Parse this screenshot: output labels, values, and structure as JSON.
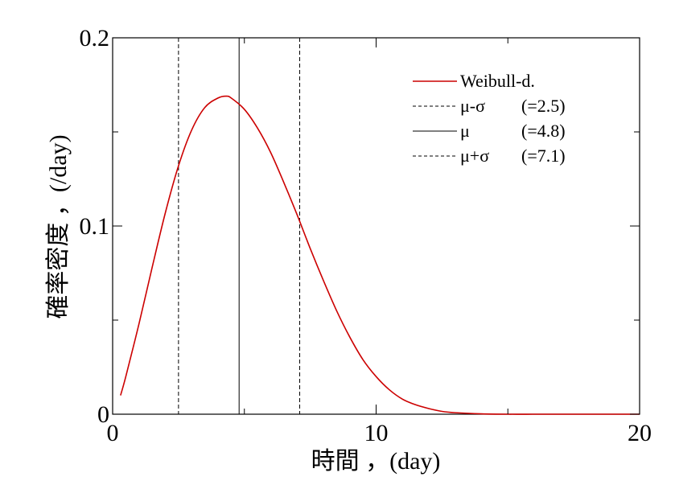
{
  "chart_data": {
    "type": "line",
    "title": "",
    "xlabel": "時間 ，(day)",
    "ylabel": "確率密度 ，(/day)",
    "xlim": [
      0,
      20
    ],
    "ylim": [
      0,
      0.2
    ],
    "x_ticks": [
      {
        "value": 0,
        "label": "0"
      },
      {
        "value": 10,
        "label": "10"
      },
      {
        "value": 20,
        "label": "20"
      }
    ],
    "y_ticks": [
      {
        "value": 0,
        "label": "0"
      },
      {
        "value": 0.1,
        "label": "0.1"
      },
      {
        "value": 0.2,
        "label": "0.2"
      }
    ],
    "x_minor_step": 5,
    "y_minor_step": 0.05,
    "grid": false,
    "legend_position": "top-right",
    "series": [
      {
        "name": "Weibull-d.",
        "color": "#cc0000",
        "style": "solid",
        "x": [
          0.3,
          0.5,
          1.0,
          1.5,
          2.0,
          2.5,
          3.0,
          3.5,
          4.0,
          4.3,
          4.5,
          5.0,
          5.5,
          6.0,
          6.5,
          7.0,
          7.5,
          8.0,
          8.5,
          9.0,
          9.5,
          10.0,
          10.5,
          11.0,
          11.5,
          12.0,
          12.5,
          13.0,
          14.0,
          15.0,
          16.0,
          17.0,
          18.0,
          19.0,
          20.0
        ],
        "y": [
          0.01,
          0.02,
          0.048,
          0.078,
          0.107,
          0.132,
          0.151,
          0.163,
          0.168,
          0.169,
          0.168,
          0.162,
          0.152,
          0.139,
          0.123,
          0.106,
          0.088,
          0.071,
          0.055,
          0.041,
          0.029,
          0.02,
          0.013,
          0.008,
          0.005,
          0.003,
          0.0015,
          0.0008,
          0.0002,
          0.0,
          0.0,
          0.0,
          0.0,
          0.0,
          0.0
        ]
      }
    ],
    "vertical_lines": [
      {
        "name": "μ-σ",
        "note": "(=2.5)",
        "x": 2.5,
        "style": "dashed",
        "color": "#000000"
      },
      {
        "name": "μ",
        "note": "(=4.8)",
        "x": 4.8,
        "style": "solid",
        "color": "#000000"
      },
      {
        "name": "μ+σ",
        "note": "(=7.1)",
        "x": 7.1,
        "style": "dashed",
        "color": "#000000"
      }
    ]
  }
}
